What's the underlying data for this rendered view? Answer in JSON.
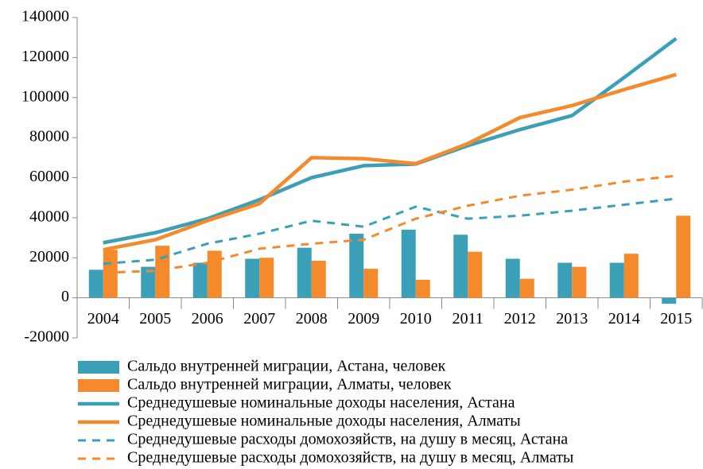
{
  "chart_data": {
    "type": "combo",
    "categories": [
      "2004",
      "2005",
      "2006",
      "2007",
      "2008",
      "2009",
      "2010",
      "2011",
      "2012",
      "2013",
      "2014",
      "2015"
    ],
    "series": [
      {
        "name": "Сальдо внутренней миграции, Астана, человек",
        "type": "bar",
        "color": "#3b9fb8",
        "values": [
          14000,
          15500,
          17500,
          19500,
          25000,
          32000,
          34000,
          31500,
          19500,
          17500,
          17500,
          -3000
        ]
      },
      {
        "name": "Сальдо внутренней миграции, Алматы, человек",
        "type": "bar",
        "color": "#f58a2c",
        "values": [
          24000,
          26000,
          23500,
          20000,
          18500,
          14500,
          9000,
          23000,
          9500,
          15500,
          22000,
          41000
        ]
      },
      {
        "name": "Среднедушевые номинальные доходы населения, Астана",
        "type": "line",
        "color": "#3b9fb8",
        "values": [
          27500,
          32500,
          39500,
          49000,
          60000,
          66000,
          66800,
          76000,
          84000,
          91000,
          110000,
          129500
        ]
      },
      {
        "name": "Среднедушевые номинальные доходы населения, Алматы",
        "type": "line",
        "color": "#f58a2c",
        "values": [
          24000,
          29000,
          38500,
          47000,
          70000,
          69500,
          67000,
          77000,
          90000,
          96000,
          104000,
          111500
        ]
      },
      {
        "name": "Среднедушевые расходы домохозяйств, на душу в месяц, Астана",
        "type": "line",
        "dashed": true,
        "color": "#3b9fb8",
        "values": [
          17000,
          19000,
          27000,
          32000,
          38500,
          35500,
          45500,
          39500,
          41000,
          43500,
          46500,
          49500
        ]
      },
      {
        "name": "Среднедушевые расходы домохозяйств, на душу в месяц, Алматы",
        "type": "line",
        "dashed": true,
        "color": "#f58a2c",
        "values": [
          12500,
          13500,
          17500,
          24500,
          27000,
          29000,
          39500,
          46000,
          51000,
          54000,
          58000,
          61000
        ]
      }
    ],
    "ylim": [
      -20000,
      140000
    ],
    "yticks": [
      -20000,
      0,
      20000,
      40000,
      60000,
      80000,
      100000,
      120000,
      140000
    ]
  }
}
